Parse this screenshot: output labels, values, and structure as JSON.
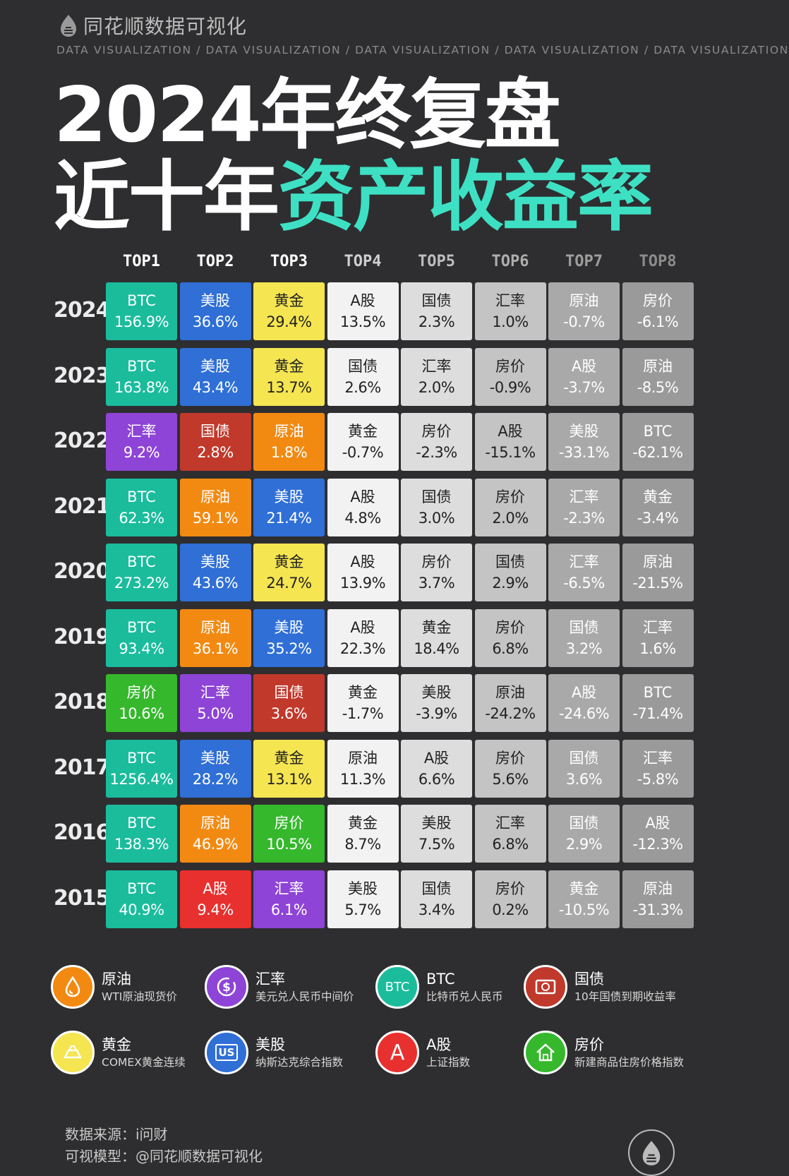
{
  "brand": {
    "name": "同花顺数据可视化",
    "logo_icon": "flame-logo-icon"
  },
  "tagline": "DATA VISUALIZATION / DATA VISUALIZATION / DATA VISUALIZATION / DATA VISUALIZATION / DATA VISUALIZATION",
  "title": {
    "line1": "2024年终复盘",
    "line2_plain": "近十年",
    "line2_accent": "资产收益率"
  },
  "chart_data": {
    "type": "table",
    "columns": [
      "TOP1",
      "TOP2",
      "TOP3",
      "TOP4",
      "TOP5",
      "TOP6",
      "TOP7",
      "TOP8"
    ],
    "rows": [
      {
        "year": "2024",
        "cells": [
          {
            "asset": "BTC",
            "value": "156.9%"
          },
          {
            "asset": "美股",
            "value": "36.6%"
          },
          {
            "asset": "黄金",
            "value": "29.4%"
          },
          {
            "asset": "A股",
            "value": "13.5%"
          },
          {
            "asset": "国债",
            "value": "2.3%"
          },
          {
            "asset": "汇率",
            "value": "1.0%"
          },
          {
            "asset": "原油",
            "value": "-0.7%"
          },
          {
            "asset": "房价",
            "value": "-6.1%"
          }
        ]
      },
      {
        "year": "2023",
        "cells": [
          {
            "asset": "BTC",
            "value": "163.8%"
          },
          {
            "asset": "美股",
            "value": "43.4%"
          },
          {
            "asset": "黄金",
            "value": "13.7%"
          },
          {
            "asset": "国债",
            "value": "2.6%"
          },
          {
            "asset": "汇率",
            "value": "2.0%"
          },
          {
            "asset": "房价",
            "value": "-0.9%"
          },
          {
            "asset": "A股",
            "value": "-3.7%"
          },
          {
            "asset": "原油",
            "value": "-8.5%"
          }
        ]
      },
      {
        "year": "2022",
        "cells": [
          {
            "asset": "汇率",
            "value": "9.2%"
          },
          {
            "asset": "国债",
            "value": "2.8%"
          },
          {
            "asset": "原油",
            "value": "1.8%"
          },
          {
            "asset": "黄金",
            "value": "-0.7%"
          },
          {
            "asset": "房价",
            "value": "-2.3%"
          },
          {
            "asset": "A股",
            "value": "-15.1%"
          },
          {
            "asset": "美股",
            "value": "-33.1%"
          },
          {
            "asset": "BTC",
            "value": "-62.1%"
          }
        ]
      },
      {
        "year": "2021",
        "cells": [
          {
            "asset": "BTC",
            "value": "62.3%"
          },
          {
            "asset": "原油",
            "value": "59.1%"
          },
          {
            "asset": "美股",
            "value": "21.4%"
          },
          {
            "asset": "A股",
            "value": "4.8%"
          },
          {
            "asset": "国债",
            "value": "3.0%"
          },
          {
            "asset": "房价",
            "value": "2.0%"
          },
          {
            "asset": "汇率",
            "value": "-2.3%"
          },
          {
            "asset": "黄金",
            "value": "-3.4%"
          }
        ]
      },
      {
        "year": "2020",
        "cells": [
          {
            "asset": "BTC",
            "value": "273.2%"
          },
          {
            "asset": "美股",
            "value": "43.6%"
          },
          {
            "asset": "黄金",
            "value": "24.7%"
          },
          {
            "asset": "A股",
            "value": "13.9%"
          },
          {
            "asset": "房价",
            "value": "3.7%"
          },
          {
            "asset": "国债",
            "value": "2.9%"
          },
          {
            "asset": "汇率",
            "value": "-6.5%"
          },
          {
            "asset": "原油",
            "value": "-21.5%"
          }
        ]
      },
      {
        "year": "2019",
        "cells": [
          {
            "asset": "BTC",
            "value": "93.4%"
          },
          {
            "asset": "原油",
            "value": "36.1%"
          },
          {
            "asset": "美股",
            "value": "35.2%"
          },
          {
            "asset": "A股",
            "value": "22.3%"
          },
          {
            "asset": "黄金",
            "value": "18.4%"
          },
          {
            "asset": "房价",
            "value": "6.8%"
          },
          {
            "asset": "国债",
            "value": "3.2%"
          },
          {
            "asset": "汇率",
            "value": "1.6%"
          }
        ]
      },
      {
        "year": "2018",
        "cells": [
          {
            "asset": "房价",
            "value": "10.6%"
          },
          {
            "asset": "汇率",
            "value": "5.0%"
          },
          {
            "asset": "国债",
            "value": "3.6%"
          },
          {
            "asset": "黄金",
            "value": "-1.7%"
          },
          {
            "asset": "美股",
            "value": "-3.9%"
          },
          {
            "asset": "原油",
            "value": "-24.2%"
          },
          {
            "asset": "A股",
            "value": "-24.6%"
          },
          {
            "asset": "BTC",
            "value": "-71.4%"
          }
        ]
      },
      {
        "year": "2017",
        "cells": [
          {
            "asset": "BTC",
            "value": "1256.4%"
          },
          {
            "asset": "美股",
            "value": "28.2%"
          },
          {
            "asset": "黄金",
            "value": "13.1%"
          },
          {
            "asset": "原油",
            "value": "11.3%"
          },
          {
            "asset": "A股",
            "value": "6.6%"
          },
          {
            "asset": "房价",
            "value": "5.6%"
          },
          {
            "asset": "国债",
            "value": "3.6%"
          },
          {
            "asset": "汇率",
            "value": "-5.8%"
          }
        ]
      },
      {
        "year": "2016",
        "cells": [
          {
            "asset": "BTC",
            "value": "138.3%"
          },
          {
            "asset": "原油",
            "value": "46.9%"
          },
          {
            "asset": "房价",
            "value": "10.5%"
          },
          {
            "asset": "黄金",
            "value": "8.7%"
          },
          {
            "asset": "美股",
            "value": "7.5%"
          },
          {
            "asset": "汇率",
            "value": "6.8%"
          },
          {
            "asset": "国债",
            "value": "2.9%"
          },
          {
            "asset": "A股",
            "value": "-12.3%"
          }
        ]
      },
      {
        "year": "2015",
        "cells": [
          {
            "asset": "BTC",
            "value": "40.9%"
          },
          {
            "asset": "A股",
            "value": "9.4%"
          },
          {
            "asset": "汇率",
            "value": "6.1%"
          },
          {
            "asset": "美股",
            "value": "5.7%"
          },
          {
            "asset": "国债",
            "value": "3.4%"
          },
          {
            "asset": "房价",
            "value": "0.2%"
          },
          {
            "asset": "黄金",
            "value": "-10.5%"
          },
          {
            "asset": "原油",
            "value": "-31.3%"
          }
        ]
      }
    ]
  },
  "colors": {
    "asset": {
      "BTC": "#1abc9c",
      "美股": "#2f6fd6",
      "黄金": "#f5e551",
      "汇率": "#8e44d6",
      "国债": "#c0392b",
      "原油": "#f28a12",
      "房价": "#35b82c",
      "A股": "#e8302e"
    },
    "tiers": [
      "#f2f2f2",
      "#dddddd",
      "#c4c4c4",
      "#a9a9a9",
      "#9a9a9a"
    ],
    "header_tiers": [
      "#ffffff",
      "#ffffff",
      "#ffffff",
      "#cfcfcf",
      "#bdbdbd",
      "#adadad",
      "#9d9d9d",
      "#8c8c8c"
    ],
    "accent": "#3ee0c4"
  },
  "legend": [
    {
      "asset": "原油",
      "label": "原油",
      "desc": "WTI原油现货价",
      "icon": "oil-drop-icon",
      "color": "#f28a12"
    },
    {
      "asset": "汇率",
      "label": "汇率",
      "desc": "美元兑人民币中间价",
      "icon": "dollar-cycle-icon",
      "color": "#8e44d6"
    },
    {
      "asset": "BTC",
      "label": "BTC",
      "desc": "比特币兑人民币",
      "icon": "btc-icon",
      "icon_text": "BTC",
      "color": "#1abc9c"
    },
    {
      "asset": "国债",
      "label": "国债",
      "desc": "10年国债到期收益率",
      "icon": "bond-certificate-icon",
      "color": "#c0392b"
    },
    {
      "asset": "黄金",
      "label": "黄金",
      "desc": "COMEX黄金连续",
      "icon": "gold-bar-icon",
      "color": "#f5e551"
    },
    {
      "asset": "美股",
      "label": "美股",
      "desc": "纳斯达克综合指数",
      "icon": "us-stock-icon",
      "icon_text": "US",
      "color": "#2f6fd6"
    },
    {
      "asset": "A股",
      "label": "A股",
      "desc": "上证指数",
      "icon": "a-share-icon",
      "icon_text": "A",
      "color": "#e8302e"
    },
    {
      "asset": "房价",
      "label": "房价",
      "desc": "新建商品住房价格指数",
      "icon": "house-icon",
      "color": "#35b82c"
    }
  ],
  "source": {
    "line1": "数据来源：i问财",
    "line2": "可视模型：@同花顺数据可视化"
  }
}
